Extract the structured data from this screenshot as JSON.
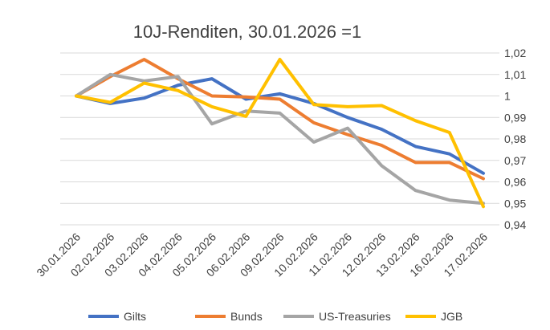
{
  "chart_data": {
    "type": "line",
    "title": "10J-Renditen, 30.01.2026 =1",
    "categories": [
      "30.01.2026",
      "02.02.2026",
      "03.02.2026",
      "04.02.2026",
      "05.02.2026",
      "06.02.2026",
      "09.02.2026",
      "10.02.2026",
      "11.02.2026",
      "12.02.2026",
      "13.02.2026",
      "16.02.2026",
      "17.02.2026"
    ],
    "ylim": [
      0.94,
      1.02
    ],
    "yticks": [
      "0,94",
      "0,95",
      "0,96",
      "0,97",
      "0,98",
      "0,99",
      "1",
      "1,01",
      "1,02"
    ],
    "grid": true,
    "legend_position": "bottom",
    "series": [
      {
        "name": "Gilts",
        "color": "#4472C4",
        "values": [
          1.0,
          0.9965,
          0.999,
          1.005,
          1.008,
          0.9985,
          1.001,
          0.9965,
          0.99,
          0.9845,
          0.9765,
          0.973,
          0.964
        ]
      },
      {
        "name": "Bunds",
        "color": "#ED7D31",
        "values": [
          1.0,
          1.009,
          1.017,
          1.008,
          1.0,
          0.9995,
          0.9985,
          0.9875,
          0.982,
          0.977,
          0.969,
          0.969,
          0.9615
        ]
      },
      {
        "name": "US-Treasuries",
        "color": "#A5A5A5",
        "values": [
          1.0,
          1.01,
          1.007,
          1.009,
          0.987,
          0.993,
          0.992,
          0.9785,
          0.985,
          0.9675,
          0.956,
          0.9515,
          0.95
        ]
      },
      {
        "name": "JGB",
        "color": "#FFC000",
        "values": [
          1.0,
          0.997,
          1.006,
          1.0025,
          0.995,
          0.9905,
          1.017,
          0.996,
          0.995,
          0.9955,
          0.9885,
          0.983,
          0.9485
        ]
      }
    ]
  }
}
